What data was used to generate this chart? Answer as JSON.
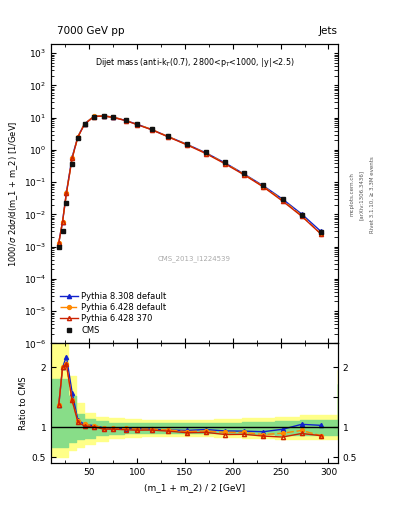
{
  "title_left": "7000 GeV pp",
  "title_right": "Jets",
  "annotation": "Dijet mass (anti-k$_T$(0.7), 2800<p$_T$<1000, |y|<2.5)",
  "watermark": "CMS_2013_I1224539",
  "ylabel_main": "1000/$\\sigma$ 2d$\\sigma$/d(m_1 + m_2) [1/GeV]",
  "ylabel_ratio": "Ratio to CMS",
  "xlabel": "(m_1 + m_2) / 2 [GeV]",
  "right_label1": "mcplots.cern.ch",
  "right_label2": "[arXiv:1306.3436]",
  "right_label3": "Rivet 3.1.10, ≥ 3.3M events",
  "cms_x": [
    18,
    22,
    26,
    32,
    38,
    45,
    55,
    65,
    75,
    88,
    100,
    115,
    132,
    152,
    172,
    192,
    212,
    232,
    252,
    272,
    292
  ],
  "cms_y": [
    0.00095,
    0.003,
    0.022,
    0.38,
    2.3,
    6.2,
    10.8,
    11.5,
    10.5,
    8.4,
    6.4,
    4.45,
    2.75,
    1.58,
    0.84,
    0.42,
    0.19,
    0.083,
    0.031,
    0.0098,
    0.0029
  ],
  "p6_370_x": [
    18,
    22,
    26,
    32,
    38,
    45,
    55,
    65,
    75,
    88,
    100,
    115,
    132,
    152,
    172,
    192,
    212,
    232,
    252,
    272,
    292
  ],
  "p6_370_y": [
    0.0013,
    0.006,
    0.045,
    0.55,
    2.5,
    6.3,
    10.9,
    11.2,
    10.2,
    8.1,
    6.1,
    4.25,
    2.58,
    1.44,
    0.77,
    0.37,
    0.168,
    0.071,
    0.026,
    0.0088,
    0.0025
  ],
  "p6_def_x": [
    18,
    22,
    26,
    32,
    38,
    45,
    55,
    65,
    75,
    88,
    100,
    115,
    132,
    152,
    172,
    192,
    212,
    232,
    252,
    272,
    292
  ],
  "p6_def_y": [
    0.0013,
    0.006,
    0.045,
    0.55,
    2.55,
    6.5,
    11.1,
    11.4,
    10.4,
    8.25,
    6.25,
    4.32,
    2.63,
    1.47,
    0.79,
    0.385,
    0.174,
    0.073,
    0.028,
    0.0093,
    0.0025
  ],
  "p8_def_x": [
    18,
    22,
    26,
    32,
    38,
    45,
    55,
    65,
    75,
    88,
    100,
    115,
    132,
    152,
    172,
    192,
    212,
    232,
    252,
    272,
    292
  ],
  "p8_def_y": [
    0.0013,
    0.006,
    0.048,
    0.6,
    2.58,
    6.5,
    11.1,
    11.4,
    10.4,
    8.2,
    6.25,
    4.32,
    2.63,
    1.5,
    0.81,
    0.395,
    0.178,
    0.077,
    0.03,
    0.0103,
    0.003
  ],
  "ratio_p6_370": [
    1.37,
    2.0,
    2.05,
    1.45,
    1.09,
    1.02,
    1.01,
    0.97,
    0.97,
    0.96,
    0.953,
    0.955,
    0.938,
    0.911,
    0.917,
    0.881,
    0.884,
    0.855,
    0.839,
    0.898,
    0.862
  ],
  "ratio_p6_def": [
    1.37,
    2.0,
    2.05,
    1.45,
    1.11,
    1.05,
    1.028,
    0.992,
    0.99,
    0.982,
    0.977,
    0.971,
    0.956,
    0.93,
    0.94,
    0.917,
    0.916,
    0.88,
    0.903,
    0.949,
    0.862
  ],
  "ratio_p8_def": [
    1.37,
    2.0,
    2.18,
    1.58,
    1.12,
    1.05,
    1.028,
    0.992,
    0.99,
    0.976,
    0.977,
    0.971,
    0.956,
    0.949,
    0.964,
    0.94,
    0.937,
    0.928,
    0.968,
    1.051,
    1.034
  ],
  "xlim": [
    10,
    310
  ],
  "ylim_main": [
    1e-06,
    2000.0
  ],
  "ylim_ratio": [
    0.4,
    2.4
  ],
  "color_cms": "#111111",
  "color_p6_370": "#cc2200",
  "color_p6_def": "#ff8800",
  "color_p8_def": "#1122cc",
  "band_x": [
    10,
    20,
    28,
    36,
    44,
    56,
    70,
    86,
    104,
    128,
    156,
    180,
    210,
    244,
    270,
    310
  ],
  "band_yellow_lo": [
    0.5,
    0.5,
    0.62,
    0.68,
    0.73,
    0.78,
    0.82,
    0.84,
    0.86,
    0.86,
    0.85,
    0.84,
    0.83,
    0.81,
    0.8,
    0.8
  ],
  "band_yellow_hi": [
    2.5,
    2.5,
    1.85,
    1.4,
    1.24,
    1.18,
    1.16,
    1.14,
    1.13,
    1.13,
    1.13,
    1.14,
    1.15,
    1.17,
    1.2,
    1.95
  ],
  "band_green_lo": [
    0.68,
    0.68,
    0.75,
    0.8,
    0.83,
    0.87,
    0.89,
    0.9,
    0.91,
    0.91,
    0.9,
    0.9,
    0.89,
    0.88,
    0.87,
    0.87
  ],
  "band_green_hi": [
    1.8,
    1.8,
    1.52,
    1.22,
    1.14,
    1.1,
    1.08,
    1.07,
    1.07,
    1.07,
    1.07,
    1.08,
    1.09,
    1.1,
    1.12,
    1.72
  ]
}
